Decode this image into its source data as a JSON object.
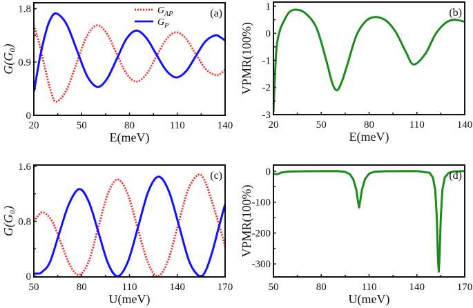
{
  "colors": {
    "G_AP": "#ff2020",
    "G_P": "#1010ff",
    "VPMR": "#1a8a1a",
    "frame": "#111111"
  },
  "chart_data": [
    {
      "panel": "(a)",
      "type": "line",
      "xlabel": "E(meV)",
      "ylabel": "G(G₀)",
      "xlim": [
        20,
        140
      ],
      "ylim": [
        0,
        1.9
      ],
      "xticks": [
        20,
        50,
        80,
        110,
        140
      ],
      "yticks": [
        0,
        0.9,
        1.8
      ],
      "ytick_labels": [
        "0",
        "0.9",
        "1.8"
      ],
      "legend": "top-center",
      "series": [
        {
          "key": "G_AP",
          "name_main": "G",
          "name_sub": "AP",
          "style": "dotted",
          "x": [
            20,
            23.5,
            27,
            30.5,
            34,
            40.4,
            46.8,
            53.2,
            59.6,
            65.8,
            71.9,
            78,
            84.2,
            90.5,
            96.7,
            103,
            109.2,
            115.4,
            121.5,
            127.7,
            133.8,
            137,
            140
          ],
          "y": [
            1.52,
            1.2,
            0.8,
            0.42,
            0.23,
            0.42,
            0.875,
            1.33,
            1.52,
            1.38,
            1.045,
            0.71,
            0.57,
            0.69,
            0.985,
            1.28,
            1.4,
            1.295,
            1.04,
            0.785,
            0.68,
            0.7,
            0.77
          ]
        },
        {
          "key": "G_P",
          "name_main": "G",
          "name_sub": "P",
          "style": "solid",
          "x": [
            20,
            22,
            24,
            27,
            30,
            34,
            40.5,
            47,
            53.5,
            60,
            66,
            72.1,
            78.1,
            84.2,
            90.5,
            96.7,
            103,
            109.2,
            115.4,
            121.5,
            127.7,
            133.8,
            137,
            140
          ],
          "y": [
            0.39,
            0.7,
            1.0,
            1.35,
            1.6,
            1.72,
            1.54,
            1.1,
            0.66,
            0.48,
            0.62,
            0.955,
            1.29,
            1.43,
            1.31,
            1.035,
            0.76,
            0.64,
            0.74,
            0.995,
            1.25,
            1.35,
            1.32,
            1.26
          ]
        }
      ]
    },
    {
      "panel": "(b)",
      "type": "line",
      "xlabel": "E(meV)",
      "ylabel": "VPMR(100%)",
      "xlim": [
        20,
        140
      ],
      "ylim": [
        -3,
        1.15
      ],
      "xticks": [
        20,
        50,
        80,
        110,
        140
      ],
      "yticks": [
        -3,
        -2,
        -1,
        0,
        1
      ],
      "ytick_labels": [
        "-3",
        "-2",
        "-1",
        "0",
        "1"
      ],
      "series": [
        {
          "key": "VPMR",
          "style": "solid",
          "x": [
            20,
            21,
            22,
            24,
            27,
            30,
            34,
            40,
            47,
            53,
            57,
            60,
            63,
            66,
            72,
            78,
            84,
            90.5,
            96.7,
            103,
            108,
            115.4,
            121.5,
            127.7,
            133.5,
            140
          ],
          "y": [
            -2.9,
            -1.5,
            -0.5,
            0.1,
            0.5,
            0.78,
            0.87,
            0.74,
            0.2,
            -0.97,
            -1.85,
            -2.1,
            -1.77,
            -1.23,
            -0.09,
            0.45,
            0.6,
            0.47,
            0.05,
            -0.68,
            -1.15,
            -0.75,
            -0.05,
            0.37,
            0.5,
            0.42
          ]
        }
      ]
    },
    {
      "panel": "(c)",
      "type": "line",
      "xlabel": "U(meV)",
      "ylabel": "G(G₀)",
      "xlim": [
        50,
        170
      ],
      "ylim": [
        -0.01,
        1.62
      ],
      "xticks": [
        50,
        80,
        110,
        140,
        170
      ],
      "yticks": [
        0,
        0.8,
        1.6
      ],
      "ytick_labels": [
        "0",
        "0.8",
        "1.6"
      ],
      "series": [
        {
          "key": "G_AP",
          "style": "dotted",
          "x": [
            50,
            53,
            56,
            61.6,
            67.2,
            72.9,
            78.5,
            84.5,
            90.5,
            96.6,
            102.6,
            108.9,
            115.1,
            121.4,
            127.6,
            134,
            140.4,
            146.8,
            153.2,
            157.4,
            161.6,
            165.8,
            170
          ],
          "y": [
            0.8,
            0.89,
            0.93,
            0.8,
            0.475,
            0.15,
            0.02,
            0.22,
            0.715,
            1.21,
            1.41,
            1.2,
            0.705,
            0.21,
            0.0,
            0.216,
            0.74,
            1.26,
            1.48,
            1.38,
            1.1,
            0.78,
            0.44
          ]
        },
        {
          "key": "G_P",
          "style": "solid",
          "x": [
            50,
            53,
            55,
            60,
            66,
            72,
            78.5,
            84.5,
            90.6,
            96.6,
            102.6,
            109,
            115.5,
            121.9,
            128.3,
            134.7,
            141.2,
            147.6,
            154,
            158,
            162,
            166,
            170
          ],
          "y": [
            0.04,
            0.04,
            0.06,
            0.2,
            0.63,
            1.05,
            1.27,
            1.085,
            0.635,
            0.185,
            0.0,
            0.21,
            0.725,
            1.24,
            1.45,
            1.24,
            0.725,
            0.21,
            0.0,
            0.09,
            0.36,
            0.71,
            1.05
          ]
        }
      ]
    },
    {
      "panel": "(d)",
      "type": "line",
      "xlabel": "U(meV)",
      "ylabel": "VPMR(100%)",
      "xlim": [
        50,
        170
      ],
      "ylim": [
        -342,
        20
      ],
      "xticks": [
        50,
        80,
        110,
        140,
        170
      ],
      "yticks": [
        -300,
        -200,
        -100,
        0
      ],
      "ytick_labels": [
        "-300",
        "-200",
        "-100",
        "0"
      ],
      "series": [
        {
          "key": "VPMR",
          "style": "solid",
          "x": [
            50,
            52,
            53,
            55,
            60,
            70,
            90,
            95,
            98,
            100,
            102,
            103,
            103.7,
            104.5,
            105.5,
            107.5,
            110,
            113,
            120,
            140,
            148,
            150,
            151.5,
            152.5,
            153.2,
            153.7,
            154.2,
            155,
            156,
            157.5,
            160,
            163,
            170
          ],
          "y": [
            -8,
            -9,
            -9,
            -4,
            -1,
            0,
            0.5,
            -2,
            -10,
            -25,
            -60,
            -95,
            -117,
            -95,
            -60,
            -25,
            -8,
            -2,
            0,
            0.5,
            -5,
            -20,
            -60,
            -150,
            -280,
            -325,
            -280,
            -150,
            -60,
            -20,
            -5,
            -1,
            0.5
          ]
        }
      ]
    }
  ]
}
